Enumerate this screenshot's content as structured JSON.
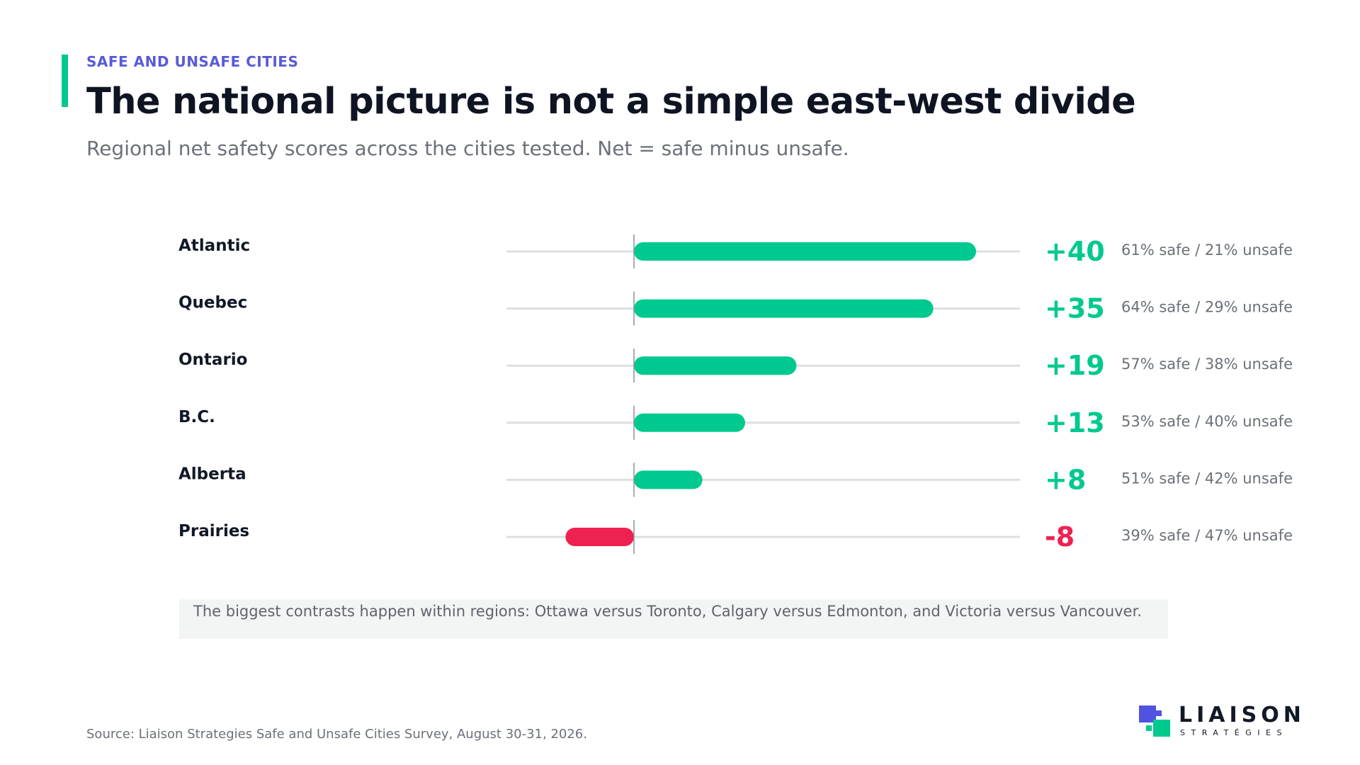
{
  "header": {
    "kicker": "SAFE AND UNSAFE CITIES",
    "title": "The national picture is not a simple east-west divide",
    "subtitle": "Regional net safety scores across the cities tested. Net = safe minus unsafe."
  },
  "chart_data": {
    "type": "bar",
    "orientation": "horizontal",
    "categories": [
      "Atlantic",
      "Quebec",
      "Ontario",
      "B.C.",
      "Alberta",
      "Prairies"
    ],
    "values": [
      40,
      35,
      19,
      13,
      8,
      -8
    ],
    "value_labels": [
      "+40",
      "+35",
      "+19",
      "+13",
      "+8",
      "-8"
    ],
    "details": [
      "61% safe / 21% unsafe",
      "64% safe / 29% unsafe",
      "57% safe / 38% unsafe",
      "53% safe / 40% unsafe",
      "51% safe / 42% unsafe",
      "39% safe / 47% unsafe"
    ],
    "xlim": [
      -15,
      45
    ],
    "colors": {
      "positive": "#00c98f",
      "negative": "#ee2250",
      "track": "#dcdfe2",
      "zero_line": "#8a8f96"
    }
  },
  "note": "The biggest contrasts happen within regions: Ottawa versus Toronto, Calgary versus Edmonton, and Victoria versus Vancouver.",
  "source": "Source: Liaison Strategies Safe and Unsafe Cities Survey, August 30-31, 2026.",
  "logo": {
    "name": "LIAISON",
    "sub": "STRATÉGIES"
  }
}
